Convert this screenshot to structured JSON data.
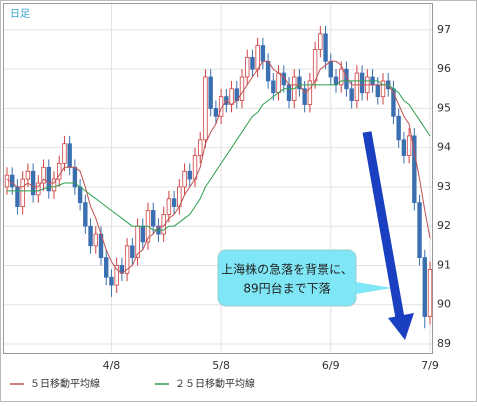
{
  "chart_data": {
    "type": "candlestick",
    "period_label": "日足",
    "categories": [
      null,
      null,
      null,
      null,
      null,
      null,
      null,
      null,
      null,
      null,
      null,
      null,
      null,
      null,
      null,
      null,
      null,
      null,
      null,
      null,
      "4/8",
      null,
      null,
      null,
      null,
      null,
      null,
      null,
      null,
      null,
      null,
      null,
      null,
      null,
      null,
      null,
      null,
      null,
      null,
      null,
      null,
      "5/8",
      null,
      null,
      null,
      null,
      null,
      null,
      null,
      null,
      null,
      null,
      null,
      null,
      null,
      null,
      null,
      null,
      null,
      null,
      null,
      null,
      "6/9",
      null,
      null,
      null,
      null,
      null,
      null,
      null,
      null,
      null,
      null,
      null,
      null,
      null,
      null,
      null,
      null,
      null,
      null,
      "7/9"
    ],
    "open": [
      93.0,
      93.3,
      93.0,
      92.5,
      93.2,
      93.4,
      92.8,
      93.1,
      93.5,
      92.9,
      93.2,
      93.6,
      94.1,
      93.5,
      93.0,
      92.6,
      92.0,
      91.5,
      91.8,
      91.2,
      90.7,
      90.5,
      91.0,
      90.8,
      91.5,
      91.2,
      92.0,
      91.6,
      92.4,
      92.0,
      91.8,
      92.3,
      92.7,
      92.5,
      93.0,
      93.4,
      93.2,
      93.8,
      94.2,
      95.8,
      95.0,
      94.8,
      95.3,
      95.1,
      95.5,
      95.2,
      95.8,
      96.3,
      96.0,
      96.6,
      96.2,
      95.7,
      95.4,
      95.9,
      95.6,
      95.2,
      95.8,
      95.5,
      95.1,
      95.7,
      96.5,
      96.9,
      96.2,
      95.8,
      95.6,
      96.0,
      95.5,
      95.2,
      95.9,
      95.4,
      95.8,
      95.6,
      95.3,
      95.7,
      95.5,
      94.8,
      94.2,
      93.8,
      94.3,
      92.6,
      91.2,
      89.7
    ],
    "high": [
      93.5,
      93.5,
      93.2,
      93.4,
      93.6,
      93.6,
      93.3,
      93.7,
      93.7,
      93.4,
      93.8,
      94.3,
      94.3,
      93.7,
      93.2,
      92.8,
      92.2,
      92.0,
      92.0,
      91.4,
      90.9,
      91.2,
      91.2,
      91.7,
      91.7,
      92.2,
      92.2,
      92.6,
      92.6,
      92.2,
      92.5,
      92.9,
      92.9,
      93.2,
      93.6,
      93.6,
      94.0,
      94.4,
      96.0,
      96.0,
      95.2,
      95.5,
      95.5,
      95.7,
      95.7,
      96.0,
      96.5,
      96.5,
      96.8,
      96.8,
      96.4,
      95.9,
      96.1,
      96.1,
      95.8,
      96.0,
      96.0,
      95.7,
      95.9,
      96.7,
      97.1,
      97.1,
      96.4,
      96.0,
      96.2,
      96.2,
      95.7,
      96.1,
      96.1,
      96.0,
      96.0,
      95.8,
      95.9,
      95.9,
      95.7,
      95.0,
      94.4,
      94.5,
      94.5,
      92.8,
      91.4,
      91.1
    ],
    "low": [
      92.8,
      92.8,
      92.3,
      92.3,
      93.0,
      92.6,
      92.6,
      92.9,
      92.7,
      92.7,
      93.0,
      93.4,
      93.3,
      92.8,
      92.4,
      91.8,
      91.3,
      91.3,
      91.0,
      90.5,
      90.2,
      90.3,
      90.6,
      90.6,
      91.0,
      91.0,
      91.4,
      91.4,
      91.8,
      91.6,
      91.6,
      92.1,
      92.3,
      92.3,
      92.8,
      93.0,
      93.0,
      93.6,
      94.0,
      94.8,
      94.6,
      94.6,
      94.9,
      94.9,
      95.0,
      95.0,
      95.6,
      95.8,
      95.8,
      96.0,
      95.5,
      95.2,
      95.2,
      95.4,
      95.0,
      95.0,
      95.3,
      94.9,
      94.9,
      95.5,
      96.3,
      96.0,
      95.6,
      95.4,
      95.4,
      95.3,
      95.0,
      95.0,
      95.2,
      95.2,
      95.4,
      95.1,
      95.1,
      95.3,
      94.6,
      94.0,
      93.6,
      93.6,
      92.4,
      91.0,
      89.4,
      89.5
    ],
    "close": [
      93.3,
      93.0,
      92.5,
      93.2,
      93.4,
      92.8,
      93.1,
      93.5,
      92.9,
      93.2,
      93.6,
      94.1,
      93.5,
      93.0,
      92.6,
      92.0,
      91.5,
      91.8,
      91.2,
      90.7,
      90.5,
      91.0,
      90.8,
      91.5,
      91.2,
      92.0,
      91.6,
      92.4,
      92.0,
      91.8,
      92.3,
      92.7,
      92.5,
      93.0,
      93.4,
      93.2,
      93.8,
      94.2,
      95.8,
      95.0,
      94.8,
      95.3,
      95.1,
      95.5,
      95.2,
      95.8,
      96.3,
      96.0,
      96.6,
      96.2,
      95.7,
      95.4,
      95.9,
      95.6,
      95.2,
      95.8,
      95.5,
      95.1,
      95.7,
      96.5,
      96.9,
      96.2,
      95.8,
      95.6,
      96.0,
      95.5,
      95.2,
      95.9,
      95.4,
      95.8,
      95.6,
      95.3,
      95.7,
      95.5,
      94.8,
      94.2,
      93.8,
      94.3,
      92.6,
      91.2,
      89.7,
      90.9
    ],
    "up_color": "#d04040",
    "down_color": "#3a6fb0",
    "series": [
      {
        "name": "５日移動平均線",
        "color": "#c05050",
        "values": [
          93.2,
          93.1,
          93.0,
          93.0,
          93.1,
          93.0,
          93.0,
          93.2,
          93.1,
          93.1,
          93.3,
          93.5,
          93.5,
          93.5,
          93.4,
          93.0,
          92.5,
          92.2,
          91.8,
          91.4,
          91.1,
          90.9,
          90.8,
          90.9,
          91.0,
          91.3,
          91.4,
          91.7,
          91.8,
          92.0,
          92.0,
          92.2,
          92.3,
          92.5,
          92.8,
          93.0,
          93.2,
          93.5,
          94.1,
          94.4,
          94.6,
          95.0,
          95.2,
          95.1,
          95.2,
          95.4,
          95.6,
          95.8,
          96.0,
          96.2,
          96.2,
          96.0,
          95.9,
          95.8,
          95.6,
          95.6,
          95.6,
          95.4,
          95.5,
          95.7,
          96.0,
          96.1,
          96.2,
          96.2,
          96.1,
          95.8,
          95.6,
          95.6,
          95.6,
          95.6,
          95.6,
          95.6,
          95.6,
          95.6,
          95.4,
          95.1,
          94.8,
          94.6,
          93.9,
          93.2,
          92.4,
          91.7
        ]
      },
      {
        "name": "２５日移動平均線",
        "color": "#2e9e4e",
        "values": [
          92.9,
          92.9,
          92.9,
          92.9,
          92.9,
          92.9,
          92.9,
          92.95,
          93.0,
          93.0,
          93.05,
          93.1,
          93.1,
          93.1,
          93.0,
          92.9,
          92.8,
          92.7,
          92.6,
          92.5,
          92.4,
          92.3,
          92.2,
          92.1,
          92.0,
          92.0,
          92.0,
          92.0,
          91.9,
          91.9,
          91.9,
          92.0,
          92.0,
          92.1,
          92.2,
          92.3,
          92.5,
          92.7,
          93.0,
          93.2,
          93.4,
          93.6,
          93.8,
          94.0,
          94.2,
          94.4,
          94.6,
          94.8,
          94.9,
          95.1,
          95.2,
          95.3,
          95.4,
          95.5,
          95.5,
          95.5,
          95.6,
          95.6,
          95.6,
          95.6,
          95.6,
          95.6,
          95.6,
          95.6,
          95.7,
          95.7,
          95.7,
          95.7,
          95.7,
          95.7,
          95.7,
          95.7,
          95.6,
          95.6,
          95.5,
          95.4,
          95.2,
          95.1,
          94.9,
          94.7,
          94.5,
          94.3
        ]
      }
    ],
    "ylim": [
      88.77,
      97.66
    ],
    "yticks": [
      89,
      90,
      91,
      92,
      93,
      94,
      95,
      96,
      97
    ],
    "grid": true,
    "annotation": [
      "上海株の急落を背景に、",
      "89円台まで下落"
    ],
    "arrow_color": "#1a3fc0"
  }
}
